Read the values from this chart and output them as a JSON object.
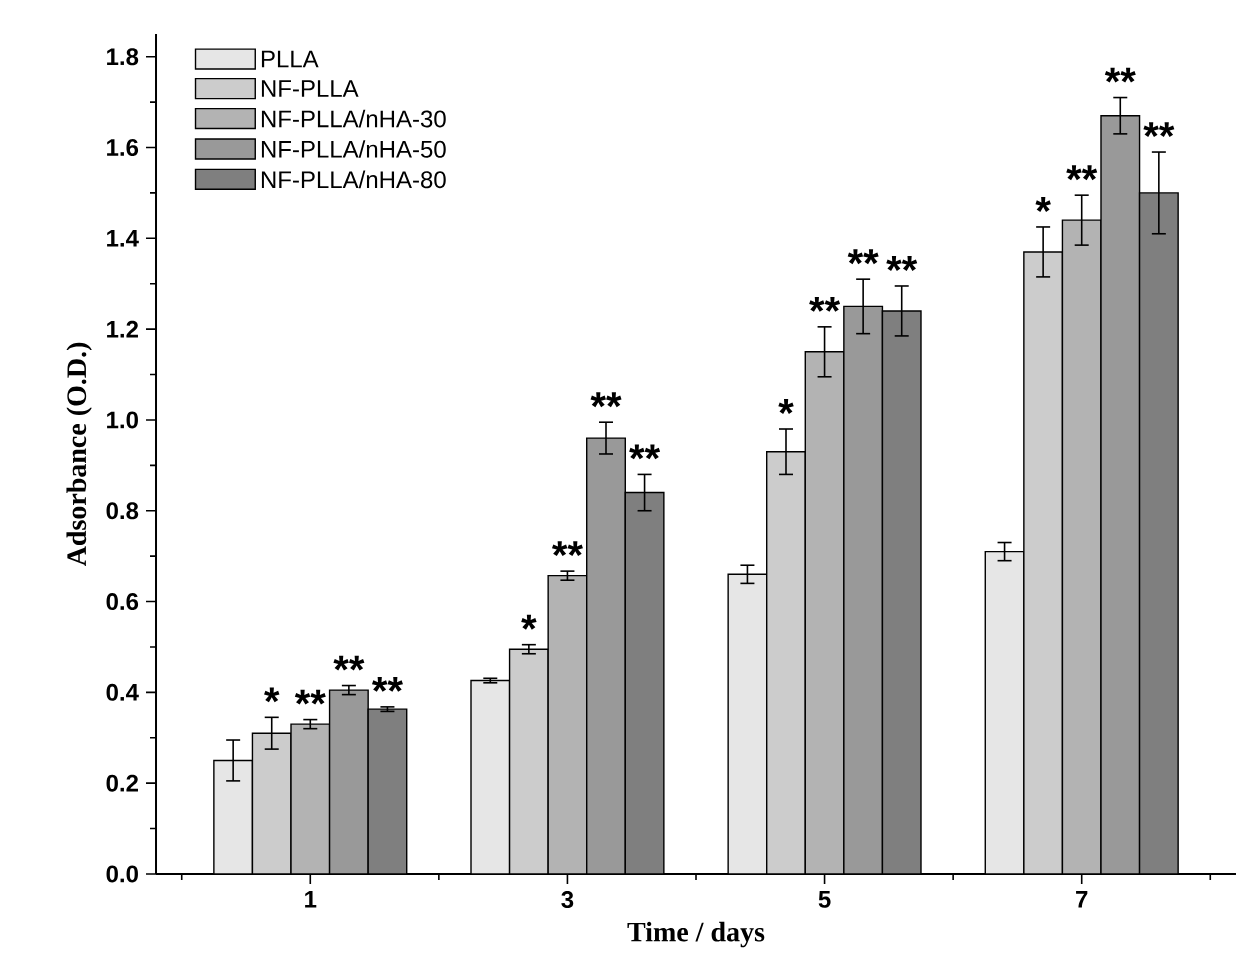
{
  "chart_data": {
    "type": "bar",
    "xlabel": "Time / days",
    "ylabel": "Adsorbance (O.D.)",
    "categories": [
      "1",
      "3",
      "5",
      "7"
    ],
    "series": [
      {
        "name": "PLLA",
        "color": "#e6e6e6",
        "values": [
          0.25,
          0.426,
          0.66,
          0.71
        ],
        "errors": [
          0.045,
          0.005,
          0.02,
          0.02
        ]
      },
      {
        "name": "NF-PLLA",
        "color": "#cccccc",
        "values": [
          0.31,
          0.495,
          0.93,
          1.37
        ],
        "errors": [
          0.035,
          0.01,
          0.05,
          0.055
        ]
      },
      {
        "name": "NF-PLLA/nHA-30",
        "color": "#b3b3b3",
        "values": [
          0.33,
          0.657,
          1.15,
          1.44
        ],
        "errors": [
          0.01,
          0.01,
          0.055,
          0.055
        ]
      },
      {
        "name": "NF-PLLA/nHA-50",
        "color": "#999999",
        "values": [
          0.405,
          0.96,
          1.25,
          1.67
        ],
        "errors": [
          0.01,
          0.035,
          0.06,
          0.04
        ]
      },
      {
        "name": "NF-PLLA/nHA-80",
        "color": "#7f7f7f",
        "values": [
          0.363,
          0.84,
          1.24,
          1.5
        ],
        "errors": [
          0.005,
          0.04,
          0.055,
          0.09
        ]
      }
    ],
    "ylim": [
      0,
      1.85
    ],
    "yticks": [
      {
        "value": 0,
        "label": "0.0"
      },
      {
        "value": 0.2,
        "label": "0.2"
      },
      {
        "value": 0.4,
        "label": "0.4"
      },
      {
        "value": 0.6,
        "label": "0.6"
      },
      {
        "value": 0.8,
        "label": "0.8"
      },
      {
        "value": 1.0,
        "label": "1.0"
      },
      {
        "value": 1.2,
        "label": "1.2"
      },
      {
        "value": 1.4,
        "label": "1.4"
      },
      {
        "value": 1.6,
        "label": "1.6"
      },
      {
        "value": 1.8,
        "label": "1.8"
      }
    ],
    "legend": "top left",
    "annotations": [
      "*",
      "**",
      "**",
      "**",
      "*",
      "**",
      "**",
      "**",
      "*",
      "**",
      "**",
      "**",
      "*",
      "**",
      "**",
      "**"
    ]
  }
}
